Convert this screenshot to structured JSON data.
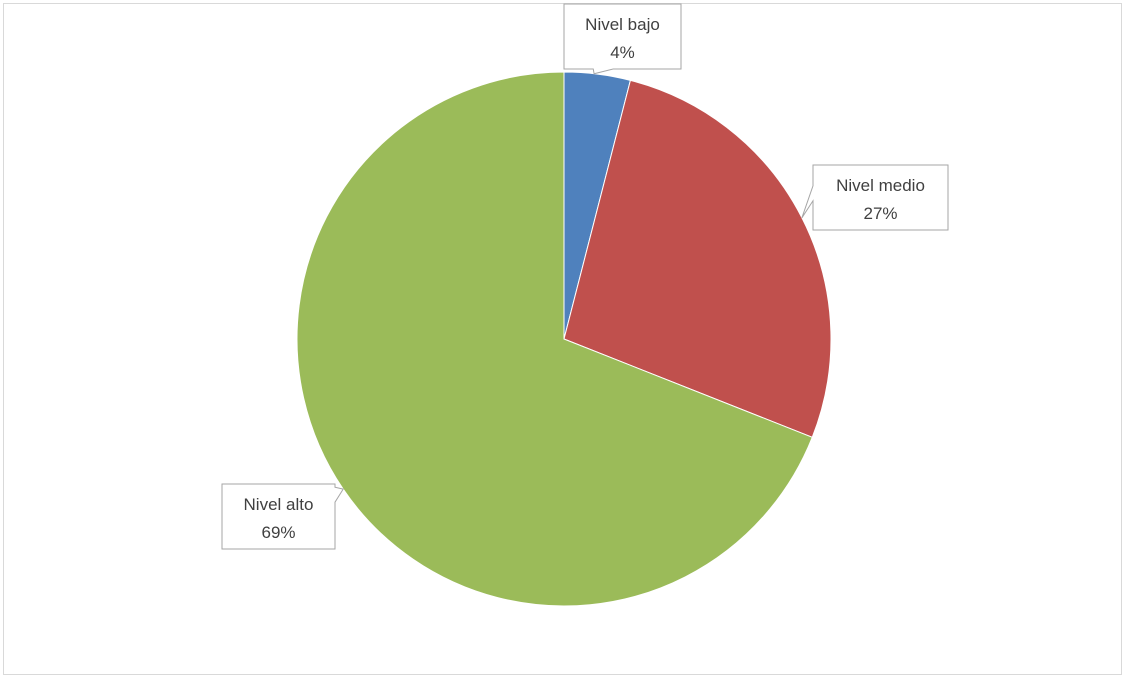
{
  "chart_data": {
    "type": "pie",
    "title": "",
    "slices": [
      {
        "label": "Nivel bajo",
        "value": 4,
        "value_label": "4%",
        "color": "#4f81bd"
      },
      {
        "label": "Nivel medio",
        "value": 27,
        "value_label": "27%",
        "color": "#c0504d"
      },
      {
        "label": "Nivel alto",
        "value": 69,
        "value_label": "69%",
        "color": "#9bbb59"
      }
    ],
    "legend": "none",
    "data_labels": "callouts"
  }
}
